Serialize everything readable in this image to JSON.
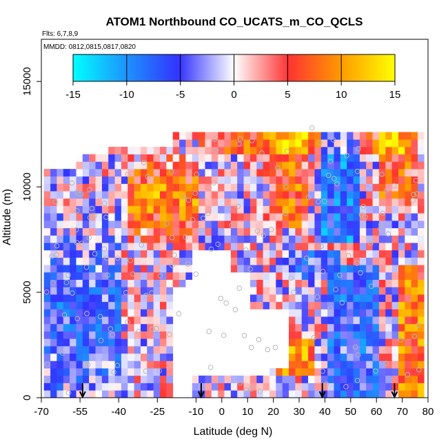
{
  "chart_data": {
    "type": "heatmap",
    "title": "ATOM1 Northbound CO_UCATS_m_CO_QCLS",
    "flights_label": "Flts: 6,7,8,9",
    "dates_label": "MMDD: 0812,0815,0817,0820",
    "xlabel": "Latitude (deg N)",
    "ylabel": "Altitude (m)",
    "xlim": [
      -70,
      80
    ],
    "ylim": [
      0,
      17000
    ],
    "x_ticks": [
      -70,
      -55,
      -40,
      -25,
      -10,
      0,
      10,
      20,
      30,
      40,
      50,
      60,
      70,
      80
    ],
    "y_ticks": [
      0,
      5000,
      10000,
      15000
    ],
    "colorbar": {
      "ticks": [
        -15,
        -10,
        -5,
        0,
        5,
        10,
        15
      ],
      "range": [
        -15,
        15
      ],
      "colors": [
        "#00ffff",
        "#3050ff",
        "#ffffff",
        "#ff3030",
        "#ffa500",
        "#ffff00"
      ]
    },
    "arrows_latitude": [
      -54,
      -8,
      39,
      67
    ],
    "grid": false,
    "legend": "top"
  }
}
